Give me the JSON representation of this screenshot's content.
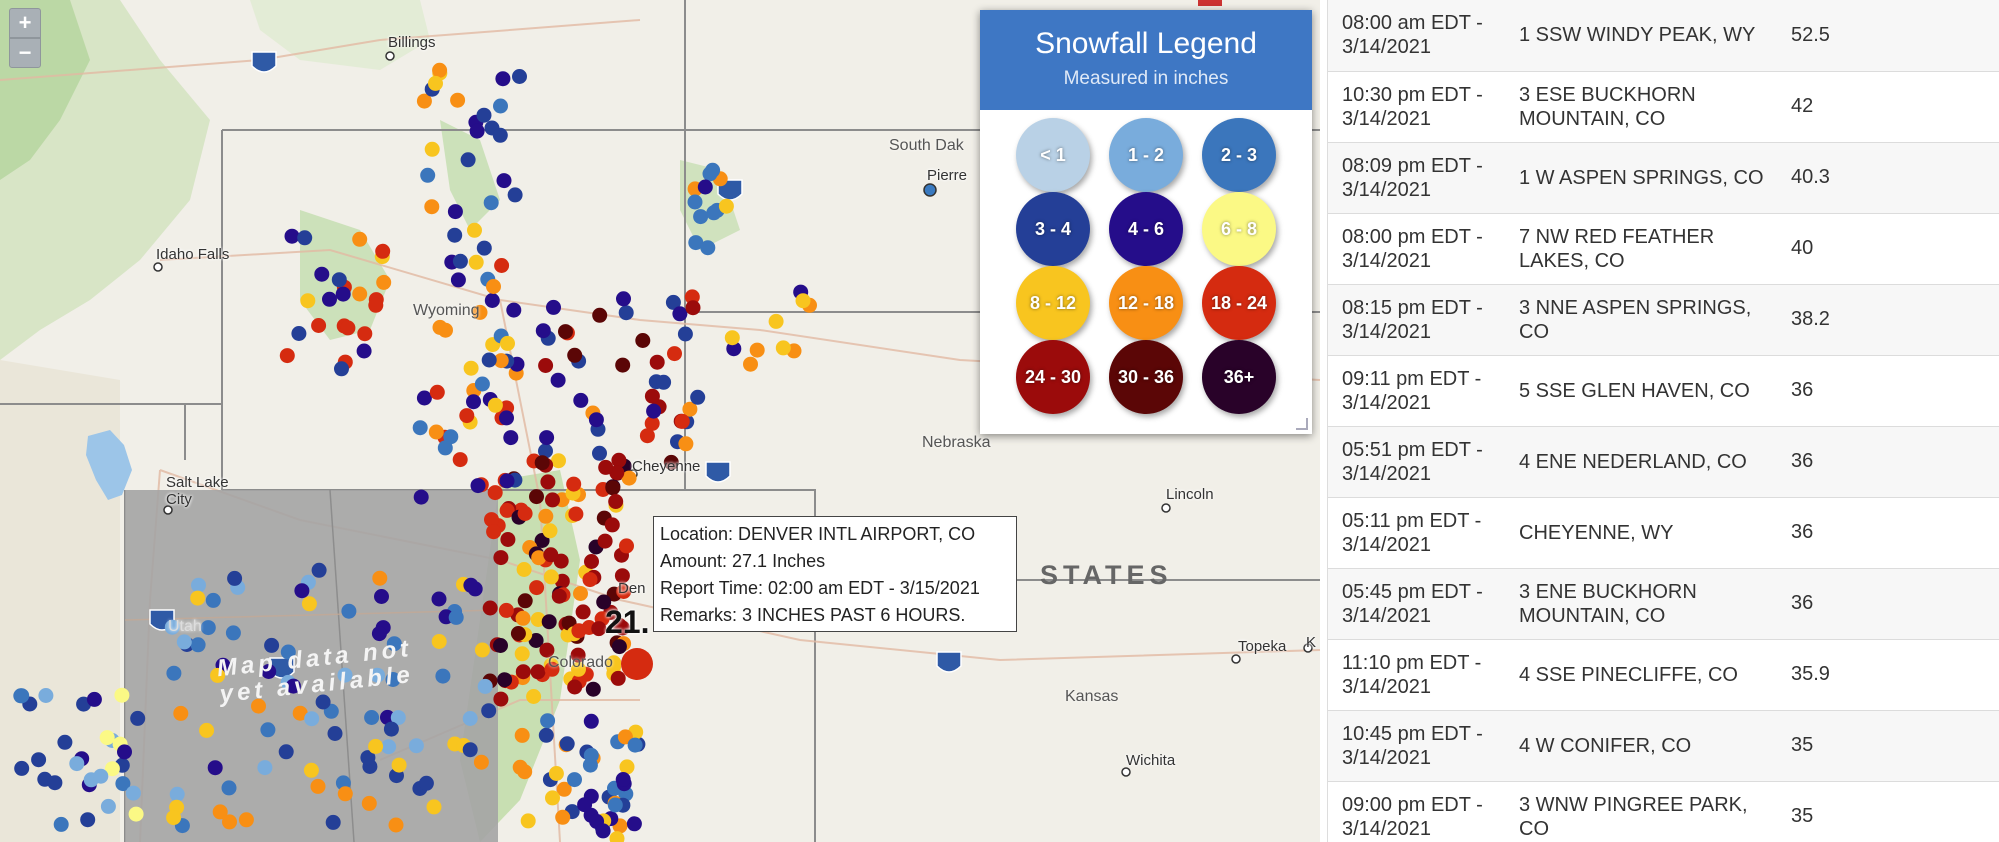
{
  "map": {
    "zoom_in_label": "+",
    "zoom_out_label": "−",
    "places": [
      {
        "name": "Billings",
        "kind": "city"
      },
      {
        "name": "Idaho Falls",
        "kind": "city"
      },
      {
        "name": "Wyoming",
        "kind": "region"
      },
      {
        "name": "South Dak",
        "kind": "region"
      },
      {
        "name": "Pierre",
        "kind": "city"
      },
      {
        "name": "Salt Lake City",
        "kind": "city"
      },
      {
        "name": "Cheyenne",
        "kind": "city"
      },
      {
        "name": "Nebraska",
        "kind": "region"
      },
      {
        "name": "Lincoln",
        "kind": "city"
      },
      {
        "name": "Utah",
        "kind": "region"
      },
      {
        "name": "Colorado",
        "kind": "region"
      },
      {
        "name": "Kansas",
        "kind": "region"
      },
      {
        "name": "Topeka",
        "kind": "city"
      },
      {
        "name": "Wichita",
        "kind": "city"
      },
      {
        "name": "K",
        "kind": "city"
      },
      {
        "name": "Den",
        "kind": "city"
      }
    ],
    "country_label": "STATES",
    "highway_shields": [
      "90",
      "15",
      "70",
      "70",
      "80"
    ],
    "overlay_text": [
      "Map data not",
      "yet available"
    ],
    "marker_label": "21."
  },
  "legend": {
    "title": "Snowfall Legend",
    "subtitle": "Measured in inches",
    "items": [
      {
        "label": "< 1",
        "color": "#b9d1e6"
      },
      {
        "label": "1 - 2",
        "color": "#79acdc"
      },
      {
        "label": "2 - 3",
        "color": "#3b76bc"
      },
      {
        "label": "3 - 4",
        "color": "#243f97"
      },
      {
        "label": "4 - 6",
        "color": "#250d8a"
      },
      {
        "label": "6 - 8",
        "color": "#fbf985"
      },
      {
        "label": "8 - 12",
        "color": "#f8c51f"
      },
      {
        "label": "12 - 18",
        "color": "#f88f14"
      },
      {
        "label": "18 - 24",
        "color": "#d52b10"
      },
      {
        "label": "24 - 30",
        "color": "#9b0b0b"
      },
      {
        "label": "30 - 36",
        "color": "#5b0606"
      },
      {
        "label": "36+",
        "color": "#290229"
      }
    ]
  },
  "popup": {
    "location": "Location: DENVER INTL AIRPORT, CO",
    "amount": "Amount: 27.1 Inches",
    "report_time": "Report Time: 02:00 am EDT - 3/15/2021",
    "remarks": "Remarks: 3 INCHES PAST 6 HOURS."
  },
  "reports": [
    {
      "time": "08:00 am EDT - 3/14/2021",
      "location": "1 SSW WINDY PEAK, WY",
      "amount": "52.5"
    },
    {
      "time": "10:30 pm EDT - 3/14/2021",
      "location": "3 ESE BUCKHORN MOUNTAIN, CO",
      "amount": "42"
    },
    {
      "time": "08:09 pm EDT - 3/14/2021",
      "location": "1 W ASPEN SPRINGS, CO",
      "amount": "40.3"
    },
    {
      "time": "08:00 pm EDT - 3/14/2021",
      "location": "7 NW RED FEATHER LAKES, CO",
      "amount": "40"
    },
    {
      "time": "08:15 pm EDT - 3/14/2021",
      "location": "3 NNE ASPEN SPRINGS, CO",
      "amount": "38.2"
    },
    {
      "time": "09:11 pm EDT - 3/14/2021",
      "location": "5 SSE GLEN HAVEN, CO",
      "amount": "36"
    },
    {
      "time": "05:51 pm EDT - 3/14/2021",
      "location": "4 ENE NEDERLAND, CO",
      "amount": "36"
    },
    {
      "time": "05:11 pm EDT - 3/14/2021",
      "location": "CHEYENNE, WY",
      "amount": "36"
    },
    {
      "time": "05:45 pm EDT - 3/14/2021",
      "location": "3 ENE BUCKHORN MOUNTAIN, CO",
      "amount": "36"
    },
    {
      "time": "11:10 pm EDT - 3/14/2021",
      "location": "4 SSE PINECLIFFE, CO",
      "amount": "35.9"
    },
    {
      "time": "10:45 pm EDT - 3/14/2021",
      "location": "4 W CONIFER, CO",
      "amount": "35"
    },
    {
      "time": "09:00 pm EDT - 3/14/2021",
      "location": "3 WNW PINGREE PARK, CO",
      "amount": "35"
    }
  ]
}
